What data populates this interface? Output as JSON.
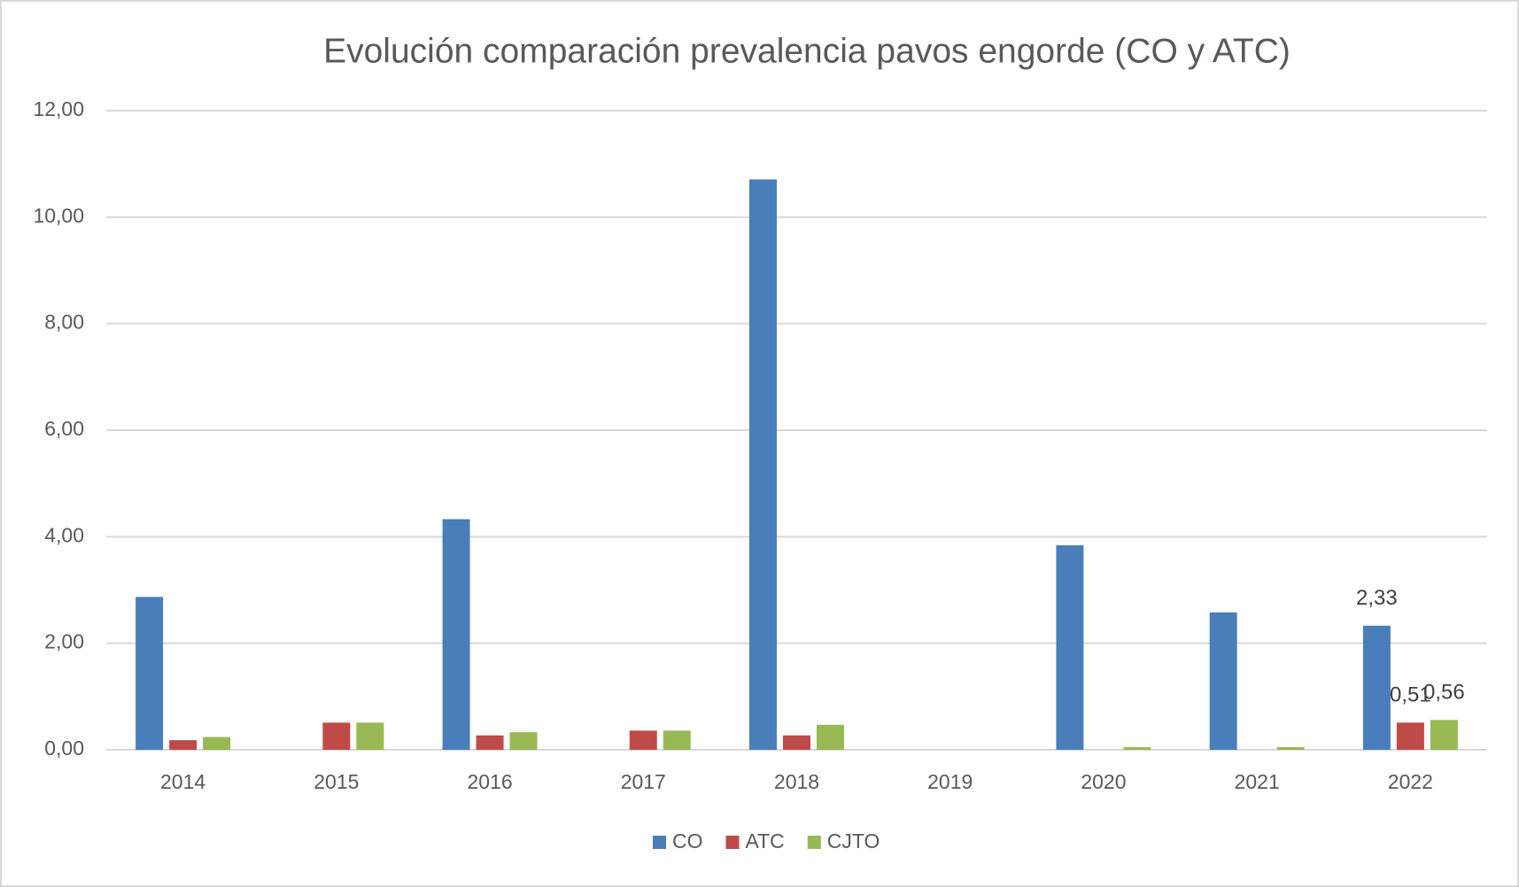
{
  "chart_data": {
    "type": "bar",
    "title": "Evolución comparación prevalencia pavos engorde (CO y ATC)",
    "categories": [
      "2014",
      "2015",
      "2016",
      "2017",
      "2018",
      "2019",
      "2020",
      "2021",
      "2022"
    ],
    "series": [
      {
        "name": "CO",
        "color": "#4a7ebb",
        "values": [
          2.87,
          0,
          4.33,
          0,
          10.71,
          0,
          3.84,
          2.58,
          2.33
        ],
        "value_labels": [
          null,
          null,
          null,
          null,
          null,
          null,
          null,
          null,
          "2,33"
        ]
      },
      {
        "name": "ATC",
        "color": "#be4b48",
        "values": [
          0.18,
          0.51,
          0.27,
          0.36,
          0.27,
          0,
          0,
          0,
          0.51
        ],
        "value_labels": [
          null,
          null,
          null,
          null,
          null,
          null,
          null,
          null,
          "0,51"
        ]
      },
      {
        "name": "CJTO",
        "color": "#98b954",
        "values": [
          0.24,
          0.51,
          0.33,
          0.36,
          0.47,
          0,
          0.05,
          0.05,
          0.56
        ],
        "value_labels": [
          null,
          null,
          null,
          null,
          null,
          null,
          null,
          null,
          "0,56"
        ]
      }
    ],
    "ylim": [
      0,
      12
    ],
    "yticks": [
      {
        "value": 0,
        "label": "0,00"
      },
      {
        "value": 2,
        "label": "2,00"
      },
      {
        "value": 4,
        "label": "4,00"
      },
      {
        "value": 6,
        "label": "6,00"
      },
      {
        "value": 8,
        "label": "8,00"
      },
      {
        "value": 10,
        "label": "10,00"
      },
      {
        "value": 12,
        "label": "12,00"
      }
    ],
    "grid": true,
    "legend": "bottom"
  }
}
